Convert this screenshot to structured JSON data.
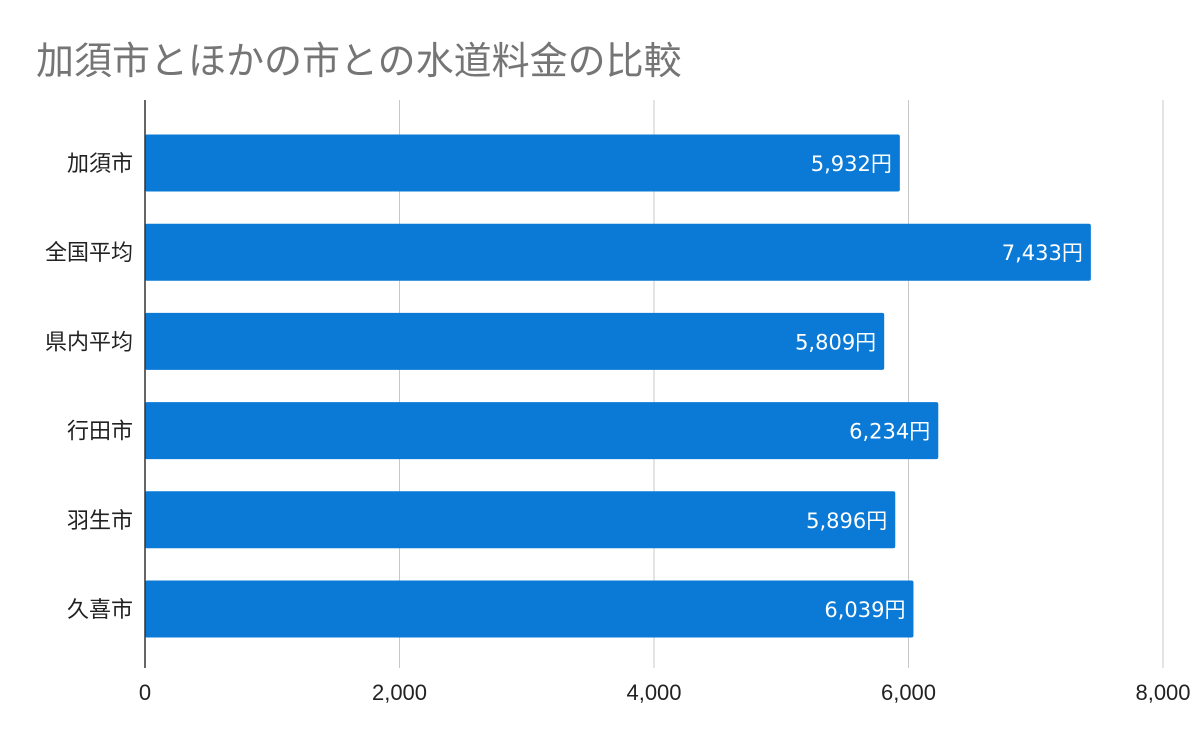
{
  "chart_data": {
    "type": "bar",
    "orientation": "horizontal",
    "title": "加須市とほかの市との水道料金の比較",
    "categories": [
      "加須市",
      "全国平均",
      "県内平均",
      "行田市",
      "羽生市",
      "久喜市"
    ],
    "values": [
      5932,
      7433,
      5809,
      6234,
      5896,
      6039
    ],
    "value_labels": [
      "5,932円",
      "7,433円",
      "5,809円",
      "6,234円",
      "5,896円",
      "6,039円"
    ],
    "xlim": [
      0,
      8000
    ],
    "x_ticks": [
      0,
      2000,
      4000,
      6000,
      8000
    ],
    "x_tick_labels": [
      "0",
      "2,000",
      "4,000",
      "6,000",
      "8,000"
    ],
    "grid": true,
    "legend": "none",
    "bar_color": "#0a7ad6"
  }
}
